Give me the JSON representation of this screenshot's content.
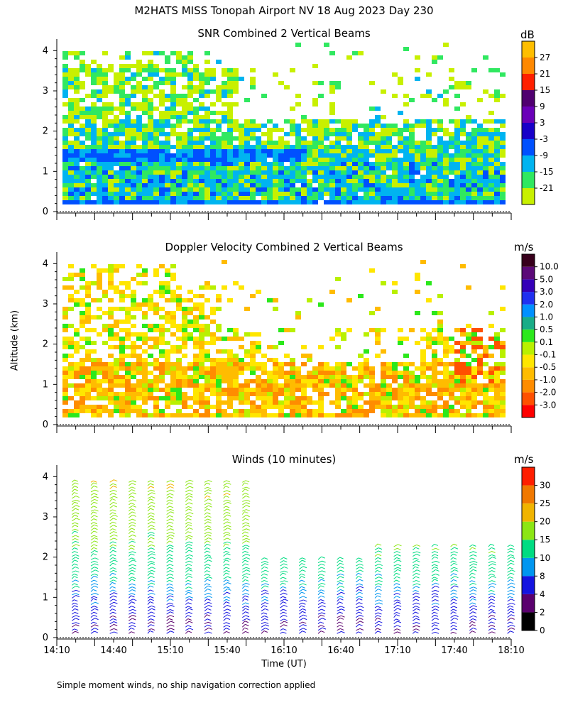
{
  "title": "M2HATS MISS Tonopah Airport NV  18 Aug 2023 Day 230",
  "y_axis_label": "Altitude (km)",
  "x_axis_label": "Time (UT)",
  "footnote": "Simple moment winds, no ship navigation correction applied",
  "chart_data": [
    {
      "type": "heatmap",
      "title": "SNR Combined 2 Vertical Beams",
      "xlabel": "",
      "ylabel": "Altitude (km)",
      "ylim": [
        0,
        4
      ],
      "yticks": [
        "0",
        "1",
        "2",
        "3",
        "4"
      ],
      "xlim": [
        "14:10",
        "18:10"
      ],
      "colorbar_unit": "dB",
      "colorbar_labels": [
        "-21",
        "-15",
        "-9",
        "-3",
        "3",
        "9",
        "15",
        "21",
        "27"
      ],
      "colorbar_colors": [
        "#c8f000",
        "#30e860",
        "#00b4f0",
        "#0050ff",
        "#1800c8",
        "#6a00b8",
        "#500070",
        "#ff2000",
        "#ff8800",
        "#ffbe00"
      ],
      "layers": [
        {
          "from_km": 0.0,
          "to_km": 0.3,
          "level": "-3 to 3",
          "dominant": "blue"
        },
        {
          "from_km": 0.3,
          "to_km": 1.2,
          "level": "-15 to -3",
          "dominant": "cyan/green"
        },
        {
          "from_km": 1.2,
          "to_km": 1.5,
          "level": "-3",
          "dominant": "blue band (14:10-15:40)"
        },
        {
          "from_km": 1.5,
          "to_km": 3.5,
          "level": "-21 to -9",
          "dominant": "yellow-green"
        }
      ]
    },
    {
      "type": "heatmap",
      "title": "Doppler Velocity Combined 2 Vertical Beams",
      "ylabel": "Altitude (km)",
      "ylim": [
        0,
        4
      ],
      "yticks": [
        "0",
        "1",
        "2",
        "3",
        "4"
      ],
      "colorbar_unit": "m/s",
      "colorbar_labels": [
        "10.0",
        "5.0",
        "3.0",
        "2.0",
        "1.0",
        "0.5",
        "0.1",
        "-0.1",
        "-0.5",
        "-1.0",
        "-2.0",
        "-3.0"
      ],
      "colorbar_colors": [
        "#38001c",
        "#5c0a78",
        "#3500b8",
        "#2030f0",
        "#0090ff",
        "#19ac87",
        "#2be81b",
        "#b9f000",
        "#ffe600",
        "#ffbc00",
        "#ff8c00",
        "#ff5000",
        "#ff0000"
      ],
      "layers": [
        {
          "from_km": 0.0,
          "to_km": 1.5,
          "level": "-0.5 to -1.0",
          "dominant": "orange"
        },
        {
          "from_km": 1.5,
          "to_km": 3.5,
          "level": "-0.1 to 0.1",
          "dominant": "yellow"
        }
      ]
    },
    {
      "type": "scatter",
      "subtype": "wind-barbs",
      "title": "Winds (10 minutes)",
      "ylabel": "Altitude (km)",
      "ylim": [
        0,
        4
      ],
      "yticks": [
        "0",
        "1",
        "2",
        "3",
        "4"
      ],
      "x_categories": [
        "14:10",
        "14:40",
        "15:10",
        "15:40",
        "16:10",
        "16:40",
        "17:10",
        "17:40",
        "18:10"
      ],
      "colorbar_unit": "m/s",
      "colorbar_labels": [
        "0",
        "2",
        "4",
        "8",
        "10",
        "15",
        "20",
        "25",
        "30"
      ],
      "colorbar_colors": [
        "#000000",
        "#5a006e",
        "#1414e0",
        "#0096f0",
        "#00dc82",
        "#8ce614",
        "#f0b400",
        "#f07800",
        "#ff1e00"
      ],
      "profile_times": [
        "14:10",
        "14:20",
        "14:30",
        "14:40",
        "14:50",
        "15:00",
        "15:10",
        "15:20",
        "15:30",
        "15:40",
        "15:50",
        "16:00",
        "16:10",
        "16:20",
        "16:30",
        "16:40",
        "16:50",
        "17:00",
        "17:10",
        "17:20",
        "17:30",
        "17:40",
        "17:50",
        "18:00"
      ],
      "speed_by_altitude": [
        {
          "altitude_km": 0.3,
          "speed_ms": 4
        },
        {
          "altitude_km": 1.0,
          "speed_ms": 8
        },
        {
          "altitude_km": 1.5,
          "speed_ms": 11
        },
        {
          "altitude_km": 2.5,
          "speed_ms": 16
        },
        {
          "altitude_km": 3.5,
          "speed_ms": 19
        }
      ]
    }
  ]
}
